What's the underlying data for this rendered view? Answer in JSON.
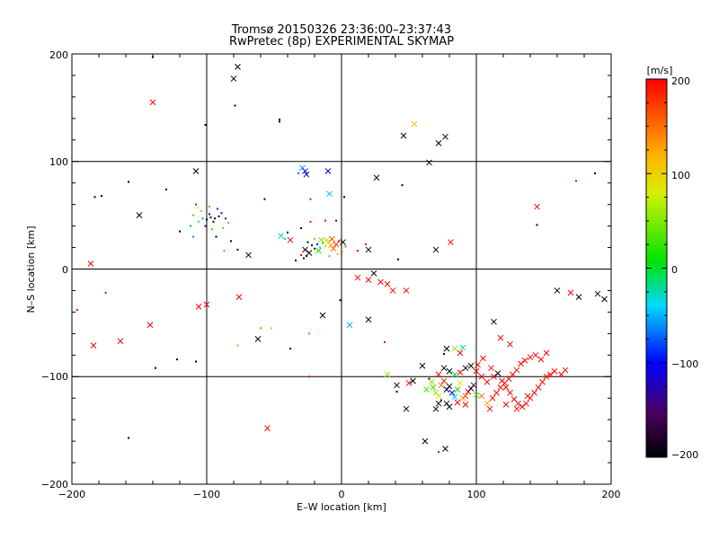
{
  "chart_data": {
    "type": "scatter",
    "title": "Tromsø 20150326 23:36:00–23:37:43",
    "subtitle": "RwPretec (8p) EXPERIMENTAL SKYMAP",
    "xlabel": "E–W location [km]",
    "ylabel": "N–S location [km]",
    "xlim": [
      -200,
      200
    ],
    "ylim": [
      -200,
      200
    ],
    "xticks": [
      "−200",
      "−100",
      "0",
      "100",
      "200"
    ],
    "yticks": [
      "−200",
      "−100",
      "0",
      "100",
      "200"
    ],
    "grid": true,
    "colorbar": {
      "label": "[m/s]",
      "range": [
        -200,
        200
      ],
      "ticks": [
        "−200",
        "−100",
        "0",
        "100",
        "200"
      ],
      "colormap": "black-purple-blue-cyan-green-yellow-red",
      "position": "right"
    },
    "marker_sizes": [
      "large cross",
      "small dot"
    ],
    "points": [
      [
        -140,
        197,
        -200,
        0
      ],
      [
        -140,
        155,
        200,
        1
      ],
      [
        -77,
        188,
        -200,
        1
      ],
      [
        -80,
        177,
        -200,
        1
      ],
      [
        -79,
        152,
        -200,
        0
      ],
      [
        -101,
        134,
        -200,
        0
      ],
      [
        -46,
        137,
        -200,
        0
      ],
      [
        -46,
        139,
        -200,
        0
      ],
      [
        54,
        135,
        110,
        1
      ],
      [
        46,
        124,
        -200,
        1
      ],
      [
        77,
        123,
        -200,
        1
      ],
      [
        72,
        117,
        -200,
        1
      ],
      [
        65,
        99,
        -200,
        1
      ],
      [
        26,
        85,
        -200,
        1
      ],
      [
        -108,
        91,
        -200,
        1
      ],
      [
        -29,
        94,
        -60,
        1
      ],
      [
        -27,
        91,
        -90,
        1
      ],
      [
        -26,
        88,
        -120,
        1
      ],
      [
        -32,
        89,
        -70,
        0
      ],
      [
        -10,
        91,
        -110,
        1
      ],
      [
        -9,
        70,
        -50,
        1
      ],
      [
        2,
        67,
        -200,
        0
      ],
      [
        -130,
        74,
        -200,
        0
      ],
      [
        -158,
        81,
        -200,
        0
      ],
      [
        -183,
        67,
        -200,
        0
      ],
      [
        -178,
        68,
        -200,
        0
      ],
      [
        -150,
        50,
        -200,
        1
      ],
      [
        -57,
        65,
        -200,
        0
      ],
      [
        -23,
        65,
        200,
        0
      ],
      [
        -108,
        60,
        200,
        0
      ],
      [
        -100,
        46,
        -200,
        0
      ],
      [
        -97,
        48,
        -200,
        0
      ],
      [
        -94,
        47,
        -200,
        0
      ],
      [
        -91,
        49,
        -200,
        0
      ],
      [
        -95,
        44,
        -190,
        0
      ],
      [
        -98,
        51,
        -180,
        0
      ],
      [
        -103,
        47,
        -60,
        0
      ],
      [
        -106,
        44,
        30,
        0
      ],
      [
        -104,
        54,
        50,
        0
      ],
      [
        -92,
        56,
        -90,
        0
      ],
      [
        -89,
        52,
        -120,
        0
      ],
      [
        -86,
        47,
        -130,
        0
      ],
      [
        -84,
        43,
        30,
        0
      ],
      [
        -101,
        40,
        -120,
        0
      ],
      [
        -110,
        50,
        30,
        0
      ],
      [
        -112,
        40,
        -60,
        0
      ],
      [
        -96,
        37,
        20,
        0
      ],
      [
        -88,
        38,
        40,
        0
      ],
      [
        -107,
        57,
        80,
        0
      ],
      [
        -98,
        58,
        30,
        0
      ],
      [
        -93,
        30,
        -200,
        0
      ],
      [
        -120,
        35,
        -200,
        0
      ],
      [
        -82,
        26,
        -200,
        0
      ],
      [
        -77,
        18,
        -200,
        0
      ],
      [
        -87,
        17,
        20,
        0
      ],
      [
        -69,
        13,
        -200,
        1
      ],
      [
        -110,
        30,
        -60,
        0
      ],
      [
        -23,
        44,
        200,
        0
      ],
      [
        -12,
        45,
        200,
        0
      ],
      [
        -4,
        45,
        -120,
        0
      ],
      [
        -45,
        31,
        -30,
        1
      ],
      [
        -42,
        28,
        -10,
        0
      ],
      [
        -40,
        34,
        -200,
        0
      ],
      [
        -38,
        27,
        200,
        1
      ],
      [
        -30,
        38,
        -200,
        0
      ],
      [
        -25,
        25,
        -200,
        0
      ],
      [
        -22,
        22,
        -190,
        0
      ],
      [
        -20,
        19,
        -160,
        0
      ],
      [
        -18,
        23,
        -100,
        0
      ],
      [
        -16,
        20,
        -40,
        0
      ],
      [
        -14,
        24,
        10,
        0
      ],
      [
        -12,
        21,
        60,
        0
      ],
      [
        -10,
        25,
        100,
        1
      ],
      [
        -8,
        22,
        120,
        1
      ],
      [
        -6,
        19,
        150,
        1
      ],
      [
        -4,
        23,
        180,
        1
      ],
      [
        -2,
        26,
        200,
        0
      ],
      [
        -15,
        27,
        40,
        1
      ],
      [
        -17,
        17,
        20,
        1
      ],
      [
        -24,
        15,
        -200,
        1
      ],
      [
        -26,
        12,
        -200,
        0
      ],
      [
        -28,
        10,
        -200,
        0
      ],
      [
        -30,
        13,
        200,
        0
      ],
      [
        -27,
        18,
        -200,
        1
      ],
      [
        -34,
        8,
        -200,
        0
      ],
      [
        -20,
        28,
        40,
        0
      ],
      [
        -11,
        27,
        90,
        1
      ],
      [
        -7,
        28,
        160,
        1
      ],
      [
        1,
        25,
        -200,
        1
      ],
      [
        3,
        21,
        160,
        0
      ],
      [
        0,
        16,
        180,
        0
      ],
      [
        -3,
        14,
        120,
        0
      ],
      [
        -9,
        12,
        140,
        0
      ],
      [
        12,
        17,
        200,
        0
      ],
      [
        18,
        23,
        200,
        0
      ],
      [
        20,
        18,
        -200,
        1
      ],
      [
        42,
        9,
        -200,
        0
      ],
      [
        70,
        18,
        -200,
        1
      ],
      [
        81,
        25,
        200,
        1
      ],
      [
        45,
        78,
        -200,
        0
      ],
      [
        145,
        41,
        -200,
        0
      ],
      [
        145,
        58,
        200,
        1
      ],
      [
        174,
        82,
        200,
        0
      ],
      [
        188,
        89,
        -200,
        0
      ],
      [
        -186,
        5,
        200,
        1
      ],
      [
        -196,
        -38,
        200,
        0
      ],
      [
        -175,
        -22,
        200,
        0
      ],
      [
        -184,
        -71,
        200,
        1
      ],
      [
        -164,
        -67,
        200,
        1
      ],
      [
        -142,
        -52,
        200,
        1
      ],
      [
        -138,
        -92,
        -200,
        0
      ],
      [
        -122,
        -84,
        -200,
        0
      ],
      [
        -108,
        -86,
        -200,
        0
      ],
      [
        -106,
        -35,
        200,
        1
      ],
      [
        -100,
        -33,
        200,
        1
      ],
      [
        -76,
        -26,
        200,
        1
      ],
      [
        -77,
        -71,
        40,
        0
      ],
      [
        -62,
        -65,
        -200,
        1
      ],
      [
        -60,
        -55,
        20,
        0
      ],
      [
        -52,
        -55,
        60,
        0
      ],
      [
        -38,
        -74,
        -200,
        0
      ],
      [
        -24,
        -60,
        20,
        0
      ],
      [
        -14,
        -43,
        -200,
        1
      ],
      [
        -24,
        -100,
        200,
        0
      ],
      [
        -158,
        -157,
        -200,
        0
      ],
      [
        -55,
        -148,
        200,
        1
      ],
      [
        12,
        -8,
        200,
        1
      ],
      [
        20,
        -10,
        200,
        1
      ],
      [
        24,
        -4,
        -200,
        1
      ],
      [
        29,
        -12,
        200,
        1
      ],
      [
        34,
        -14,
        200,
        1
      ],
      [
        38,
        -20,
        200,
        1
      ],
      [
        48,
        -20,
        200,
        1
      ],
      [
        20,
        -47,
        -200,
        1
      ],
      [
        6,
        -52,
        -50,
        1
      ],
      [
        -1,
        -29,
        -200,
        0
      ],
      [
        32,
        -68,
        200,
        0
      ],
      [
        34,
        -98,
        60,
        1
      ],
      [
        41,
        -108,
        -200,
        1
      ],
      [
        41,
        -114,
        -200,
        0
      ],
      [
        50,
        -106,
        200,
        1
      ],
      [
        53,
        -104,
        -200,
        1
      ],
      [
        48,
        -130,
        -200,
        1
      ],
      [
        60,
        -90,
        -200,
        1
      ],
      [
        65,
        -102,
        -200,
        0
      ],
      [
        68,
        -110,
        30,
        1
      ],
      [
        70,
        -115,
        60,
        1
      ],
      [
        72,
        -118,
        100,
        1
      ],
      [
        74,
        -108,
        150,
        1
      ],
      [
        76,
        -104,
        180,
        1
      ],
      [
        78,
        -112,
        -200,
        1
      ],
      [
        80,
        -109,
        -180,
        1
      ],
      [
        82,
        -115,
        -100,
        1
      ],
      [
        84,
        -119,
        -40,
        1
      ],
      [
        86,
        -112,
        20,
        1
      ],
      [
        88,
        -106,
        80,
        1
      ],
      [
        90,
        -120,
        130,
        1
      ],
      [
        92,
        -118,
        170,
        1
      ],
      [
        94,
        -114,
        200,
        1
      ],
      [
        96,
        -111,
        -200,
        1
      ],
      [
        98,
        -108,
        -160,
        1
      ],
      [
        100,
        -117,
        40,
        1
      ],
      [
        70,
        -130,
        -200,
        1
      ],
      [
        72,
        -125,
        -200,
        1
      ],
      [
        74,
        -122,
        -200,
        0
      ],
      [
        78,
        -125,
        -200,
        1
      ],
      [
        80,
        -128,
        -200,
        1
      ],
      [
        86,
        -124,
        200,
        1
      ],
      [
        92,
        -126,
        200,
        1
      ],
      [
        63,
        -112,
        30,
        1
      ],
      [
        67,
        -105,
        50,
        1
      ],
      [
        72,
        -98,
        200,
        1
      ],
      [
        76,
        -92,
        -200,
        1
      ],
      [
        80,
        -95,
        -200,
        1
      ],
      [
        84,
        -98,
        0,
        1
      ],
      [
        88,
        -96,
        200,
        1
      ],
      [
        92,
        -92,
        -200,
        1
      ],
      [
        96,
        -90,
        -200,
        1
      ],
      [
        100,
        -95,
        200,
        1
      ],
      [
        104,
        -100,
        200,
        1
      ],
      [
        108,
        -105,
        200,
        1
      ],
      [
        111,
        -92,
        200,
        1
      ],
      [
        113,
        -100,
        200,
        1
      ],
      [
        116,
        -97,
        -200,
        1
      ],
      [
        119,
        -104,
        200,
        1
      ],
      [
        122,
        -110,
        200,
        1
      ],
      [
        125,
        -115,
        200,
        1
      ],
      [
        128,
        -121,
        200,
        1
      ],
      [
        131,
        -125,
        200,
        1
      ],
      [
        134,
        -128,
        200,
        1
      ],
      [
        137,
        -125,
        200,
        1
      ],
      [
        140,
        -120,
        200,
        1
      ],
      [
        143,
        -115,
        200,
        1
      ],
      [
        146,
        -110,
        200,
        1
      ],
      [
        149,
        -105,
        200,
        1
      ],
      [
        152,
        -100,
        200,
        1
      ],
      [
        155,
        -98,
        200,
        1
      ],
      [
        112,
        -120,
        200,
        1
      ],
      [
        115,
        -115,
        200,
        1
      ],
      [
        118,
        -110,
        200,
        1
      ],
      [
        121,
        -106,
        200,
        1
      ],
      [
        124,
        -102,
        200,
        1
      ],
      [
        127,
        -98,
        200,
        1
      ],
      [
        130,
        -94,
        200,
        1
      ],
      [
        133,
        -88,
        200,
        1
      ],
      [
        136,
        -85,
        200,
        1
      ],
      [
        140,
        -82,
        200,
        1
      ],
      [
        144,
        -80,
        200,
        1
      ],
      [
        148,
        -84,
        200,
        1
      ],
      [
        152,
        -78,
        200,
        1
      ],
      [
        158,
        -95,
        200,
        1
      ],
      [
        163,
        -98,
        200,
        1
      ],
      [
        166,
        -94,
        200,
        1
      ],
      [
        122,
        -126,
        200,
        1
      ],
      [
        130,
        -130,
        200,
        1
      ],
      [
        138,
        -118,
        200,
        1
      ],
      [
        104,
        -118,
        150,
        1
      ],
      [
        108,
        -125,
        120,
        1
      ],
      [
        110,
        -130,
        200,
        1
      ],
      [
        101,
        -89,
        200,
        1
      ],
      [
        105,
        -83,
        200,
        1
      ],
      [
        88,
        -78,
        200,
        1
      ],
      [
        84,
        -74,
        60,
        1
      ],
      [
        90,
        -73,
        -20,
        1
      ],
      [
        78,
        -74,
        -200,
        1
      ],
      [
        76,
        -79,
        -200,
        0
      ],
      [
        113,
        -49,
        -200,
        1
      ],
      [
        125,
        -70,
        200,
        1
      ],
      [
        118,
        -64,
        200,
        1
      ],
      [
        62,
        -160,
        -200,
        1
      ],
      [
        77,
        -167,
        -200,
        1
      ],
      [
        72,
        -170,
        200,
        0
      ],
      [
        160,
        -20,
        -200,
        1
      ],
      [
        170,
        -22,
        200,
        1
      ],
      [
        176,
        -26,
        -200,
        1
      ],
      [
        190,
        -23,
        -200,
        1
      ],
      [
        195,
        -28,
        -200,
        1
      ]
    ]
  }
}
